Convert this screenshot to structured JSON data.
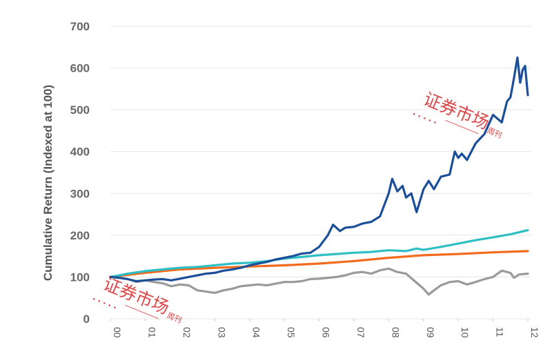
{
  "chart_data": {
    "type": "line",
    "title": "",
    "xlabel": "",
    "ylabel": "Cumulative Return (Indexed at 100)",
    "ylim": [
      0,
      700
    ],
    "xlim": [
      2000,
      2012
    ],
    "grid": true,
    "y_ticks": [
      "0",
      "100",
      "200",
      "300",
      "400",
      "500",
      "600",
      "700"
    ],
    "x_ticks": [
      {
        "x": 2000,
        "label": "00"
      },
      {
        "x": 2001,
        "label": "01"
      },
      {
        "x": 2002,
        "label": "02"
      },
      {
        "x": 2003,
        "label": "03"
      },
      {
        "x": 2004,
        "label": "04"
      },
      {
        "x": 2005,
        "label": "05"
      },
      {
        "x": 2006,
        "label": "06"
      },
      {
        "x": 2007,
        "label": "07"
      },
      {
        "x": 2008,
        "label": "08"
      },
      {
        "x": 2009,
        "label": "09"
      },
      {
        "x": 2010,
        "label": "10"
      },
      {
        "x": 2011,
        "label": "11"
      },
      {
        "x": 2012,
        "label": "12"
      }
    ],
    "series": [
      {
        "color": "#9a9a9a",
        "points": [
          [
            2000,
            100
          ],
          [
            2000.25,
            98
          ],
          [
            2000.5,
            95
          ],
          [
            2000.75,
            88
          ],
          [
            2001,
            92
          ],
          [
            2001.25,
            88
          ],
          [
            2001.5,
            85
          ],
          [
            2001.75,
            78
          ],
          [
            2002,
            82
          ],
          [
            2002.25,
            80
          ],
          [
            2002.5,
            68
          ],
          [
            2002.75,
            65
          ],
          [
            2003,
            62
          ],
          [
            2003.25,
            68
          ],
          [
            2003.5,
            72
          ],
          [
            2003.75,
            78
          ],
          [
            2004,
            80
          ],
          [
            2004.25,
            82
          ],
          [
            2004.5,
            80
          ],
          [
            2004.75,
            84
          ],
          [
            2005,
            88
          ],
          [
            2005.25,
            88
          ],
          [
            2005.5,
            90
          ],
          [
            2005.75,
            95
          ],
          [
            2006,
            96
          ],
          [
            2006.25,
            98
          ],
          [
            2006.5,
            100
          ],
          [
            2006.75,
            104
          ],
          [
            2007,
            110
          ],
          [
            2007.25,
            112
          ],
          [
            2007.5,
            108
          ],
          [
            2007.75,
            116
          ],
          [
            2008,
            120
          ],
          [
            2008.25,
            112
          ],
          [
            2008.5,
            108
          ],
          [
            2008.75,
            90
          ],
          [
            2009,
            72
          ],
          [
            2009.15,
            58
          ],
          [
            2009.3,
            68
          ],
          [
            2009.5,
            80
          ],
          [
            2009.75,
            88
          ],
          [
            2010,
            90
          ],
          [
            2010.25,
            82
          ],
          [
            2010.5,
            88
          ],
          [
            2010.75,
            95
          ],
          [
            2011,
            100
          ],
          [
            2011.25,
            115
          ],
          [
            2011.5,
            110
          ],
          [
            2011.6,
            98
          ],
          [
            2011.75,
            106
          ],
          [
            2012,
            108
          ]
        ]
      },
      {
        "color": "#f26b1d",
        "points": [
          [
            2000,
            100
          ],
          [
            2001,
            110
          ],
          [
            2002,
            118
          ],
          [
            2003,
            122
          ],
          [
            2004,
            125
          ],
          [
            2005,
            128
          ],
          [
            2006,
            132
          ],
          [
            2007,
            138
          ],
          [
            2008,
            146
          ],
          [
            2009,
            152
          ],
          [
            2010,
            155
          ],
          [
            2011,
            159
          ],
          [
            2012,
            162
          ]
        ]
      },
      {
        "color": "#2ebfc4",
        "points": [
          [
            2000,
            100
          ],
          [
            2000.5,
            108
          ],
          [
            2001,
            114
          ],
          [
            2001.5,
            118
          ],
          [
            2002,
            122
          ],
          [
            2002.5,
            124
          ],
          [
            2003,
            128
          ],
          [
            2003.5,
            132
          ],
          [
            2004,
            134
          ],
          [
            2004.5,
            138
          ],
          [
            2005,
            144
          ],
          [
            2005.5,
            148
          ],
          [
            2006,
            152
          ],
          [
            2006.5,
            155
          ],
          [
            2007,
            158
          ],
          [
            2007.5,
            160
          ],
          [
            2008,
            164
          ],
          [
            2008.5,
            162
          ],
          [
            2008.8,
            168
          ],
          [
            2009,
            165
          ],
          [
            2009.5,
            172
          ],
          [
            2010,
            180
          ],
          [
            2010.5,
            188
          ],
          [
            2011,
            195
          ],
          [
            2011.5,
            202
          ],
          [
            2012,
            212
          ]
        ]
      },
      {
        "color": "#1b4f99",
        "points": [
          [
            2000,
            100
          ],
          [
            2000.25,
            98
          ],
          [
            2000.5,
            95
          ],
          [
            2000.75,
            90
          ],
          [
            2001,
            92
          ],
          [
            2001.25,
            94
          ],
          [
            2001.5,
            95
          ],
          [
            2001.75,
            92
          ],
          [
            2002,
            96
          ],
          [
            2002.25,
            100
          ],
          [
            2002.5,
            104
          ],
          [
            2002.75,
            108
          ],
          [
            2003,
            110
          ],
          [
            2003.25,
            115
          ],
          [
            2003.5,
            118
          ],
          [
            2003.75,
            122
          ],
          [
            2004,
            128
          ],
          [
            2004.25,
            132
          ],
          [
            2004.5,
            136
          ],
          [
            2004.75,
            142
          ],
          [
            2005,
            146
          ],
          [
            2005.25,
            150
          ],
          [
            2005.5,
            156
          ],
          [
            2005.75,
            158
          ],
          [
            2006,
            172
          ],
          [
            2006.25,
            200
          ],
          [
            2006.4,
            225
          ],
          [
            2006.6,
            210
          ],
          [
            2006.75,
            218
          ],
          [
            2007,
            220
          ],
          [
            2007.25,
            228
          ],
          [
            2007.5,
            232
          ],
          [
            2007.75,
            245
          ],
          [
            2008,
            300
          ],
          [
            2008.1,
            335
          ],
          [
            2008.25,
            305
          ],
          [
            2008.4,
            318
          ],
          [
            2008.5,
            290
          ],
          [
            2008.65,
            300
          ],
          [
            2008.8,
            255
          ],
          [
            2009,
            310
          ],
          [
            2009.15,
            330
          ],
          [
            2009.3,
            310
          ],
          [
            2009.5,
            340
          ],
          [
            2009.75,
            345
          ],
          [
            2009.9,
            400
          ],
          [
            2010,
            385
          ],
          [
            2010.1,
            395
          ],
          [
            2010.25,
            380
          ],
          [
            2010.5,
            420
          ],
          [
            2010.75,
            442
          ],
          [
            2011,
            488
          ],
          [
            2011.25,
            470
          ],
          [
            2011.4,
            520
          ],
          [
            2011.5,
            530
          ],
          [
            2011.6,
            575
          ],
          [
            2011.7,
            625
          ],
          [
            2011.78,
            565
          ],
          [
            2011.85,
            595
          ],
          [
            2011.92,
            605
          ],
          [
            2012,
            535
          ]
        ]
      }
    ]
  },
  "watermarks": [
    {
      "text": "证券市场",
      "sub": "周刊"
    },
    {
      "text": "证券市场",
      "sub": "周刊"
    }
  ]
}
